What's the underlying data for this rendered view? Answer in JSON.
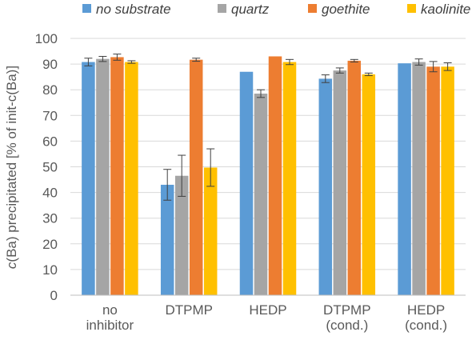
{
  "chart_data": {
    "type": "bar",
    "ylabel_parts": {
      "italic": "c",
      "rest": "(Ba) precipitated [% of init-c(Ba)]"
    },
    "ylim": [
      0,
      100
    ],
    "yticks": [
      0,
      10,
      20,
      30,
      40,
      50,
      60,
      70,
      80,
      90,
      100
    ],
    "grid": true,
    "legend_position": "top",
    "categories": [
      [
        "no",
        "inhibitor"
      ],
      [
        "DTPMP"
      ],
      [
        "HEDP"
      ],
      [
        "DTPMP",
        "(cond.)"
      ],
      [
        "HEDP",
        "(cond.)"
      ]
    ],
    "series": [
      {
        "name": "no substrate",
        "color": "#5b9bd5",
        "values": [
          90.8,
          43.0,
          87.0,
          84.3,
          90.3
        ],
        "errors": [
          1.5,
          6.0,
          0.0,
          1.5,
          0.0
        ]
      },
      {
        "name": "quartz",
        "color": "#a5a5a5",
        "values": [
          92.0,
          46.5,
          78.5,
          87.5,
          90.8
        ],
        "errors": [
          1.0,
          8.0,
          1.5,
          1.0,
          1.2
        ]
      },
      {
        "name": "goethite",
        "color": "#ed7d31",
        "values": [
          92.7,
          91.7,
          93.0,
          91.3,
          89.0
        ],
        "errors": [
          1.2,
          0.6,
          0.0,
          0.5,
          2.0
        ]
      },
      {
        "name": "kaolinite",
        "color": "#ffc000",
        "values": [
          90.8,
          49.7,
          90.8,
          86.0,
          89.0
        ],
        "errors": [
          0.5,
          7.3,
          1.0,
          0.5,
          1.5
        ]
      }
    ]
  }
}
